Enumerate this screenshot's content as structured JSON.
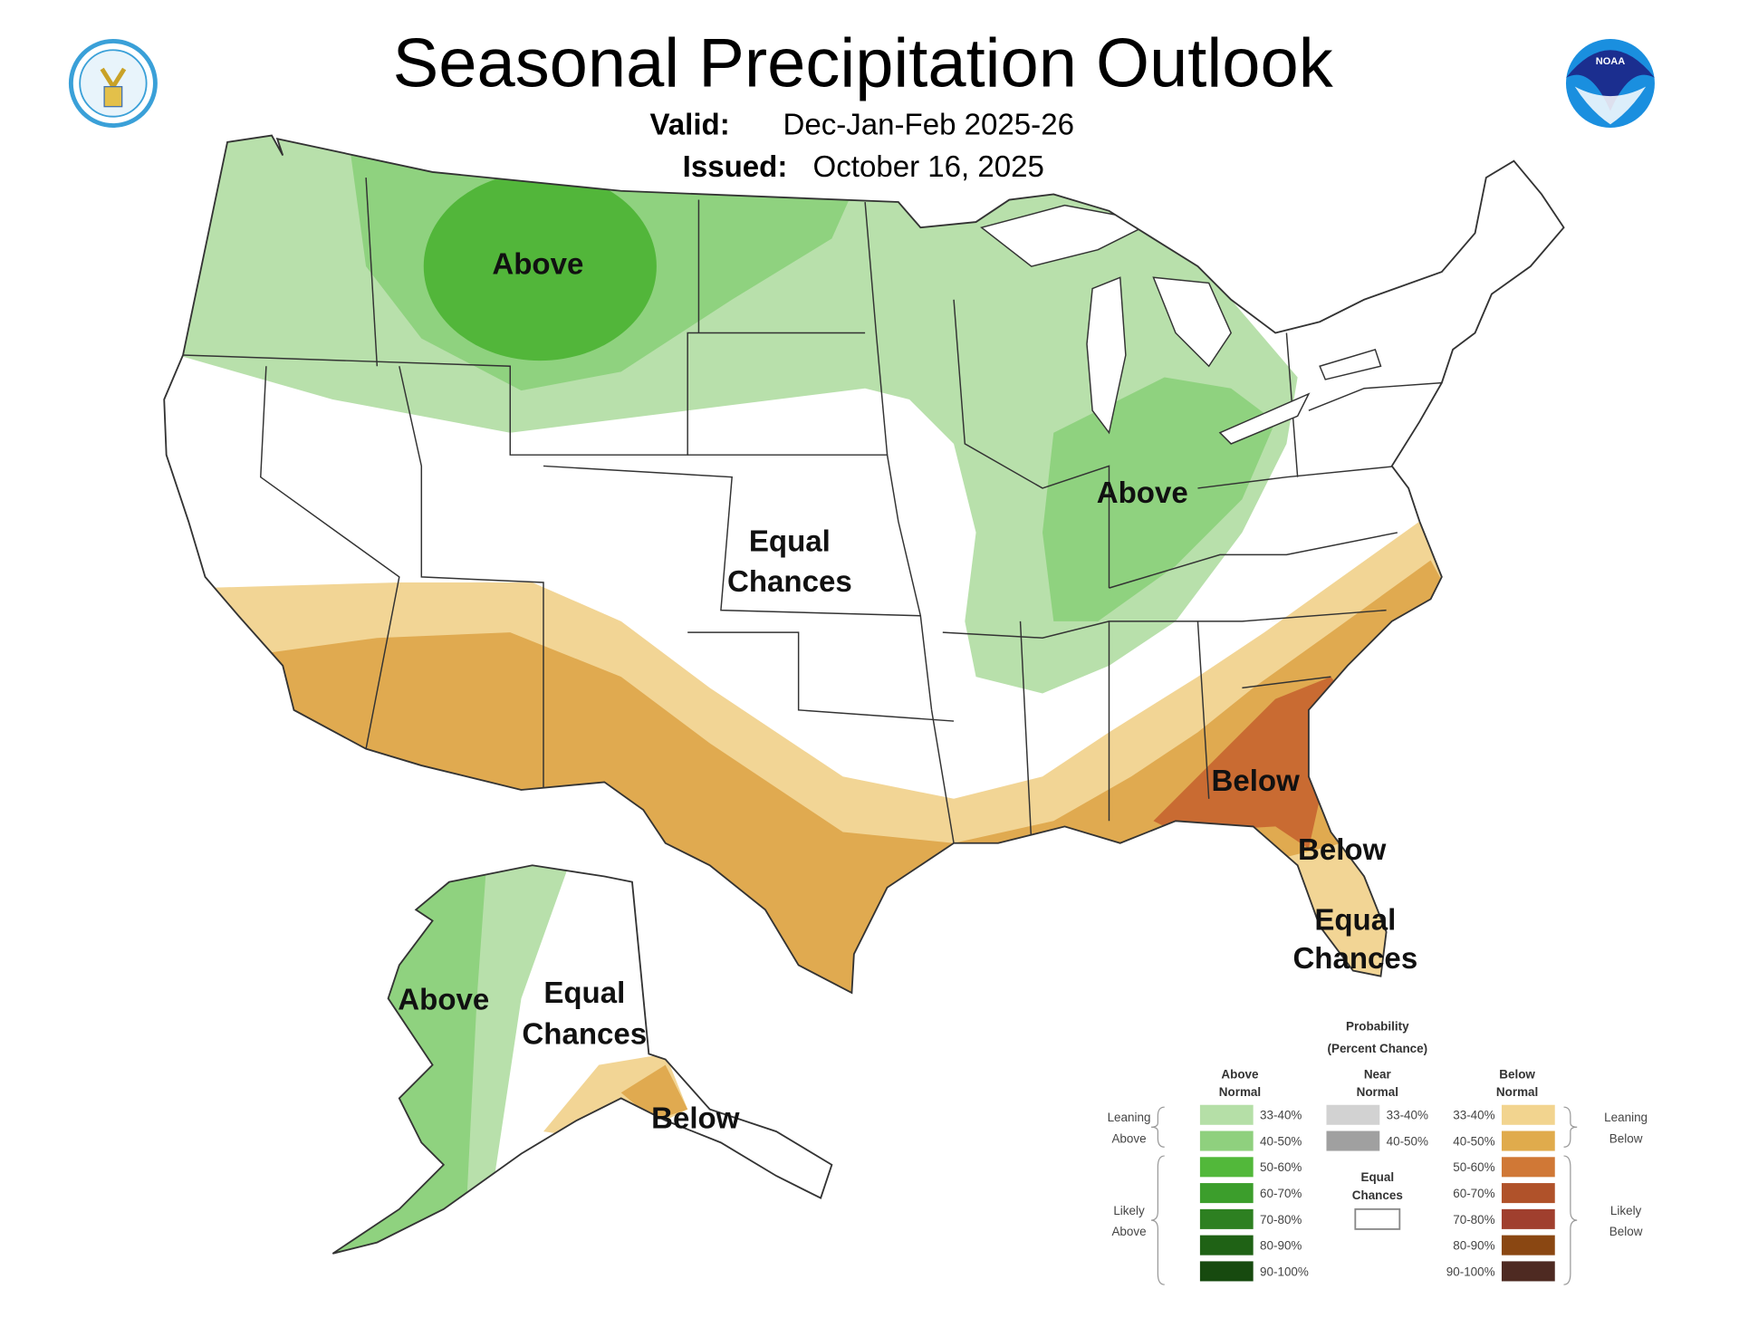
{
  "header": {
    "title": "Seasonal Precipitation Outlook",
    "valid_label": "Valid:",
    "valid_value": "Dec-Jan-Feb 2025-26",
    "issued_label": "Issued:",
    "issued_value": "October 16, 2025",
    "logo_left": "Department of Commerce seal",
    "logo_right": "NOAA"
  },
  "map_labels": {
    "north_above": "Above",
    "midwest_above": "Above",
    "central_equal_1": "Equal",
    "central_equal_2": "Chances",
    "southeast_below_1": "Below",
    "southeast_below_2": "Below",
    "florida_equal_1": "Equal",
    "florida_equal_2": "Chances",
    "alaska_above": "Above",
    "alaska_equal_1": "Equal",
    "alaska_equal_2": "Chances",
    "alaska_below": "Below"
  },
  "colors": {
    "light_green": "#b8e0ab",
    "medium_green": "#8fd27f",
    "dark_green": "#52b63a",
    "tan": "#f2d595",
    "orange": "#e0aa50",
    "brown": "#c96b32"
  },
  "legend": {
    "title_1": "Probability",
    "title_2": "(Percent Chance)",
    "above_header_1": "Above",
    "above_header_2": "Normal",
    "near_header_1": "Near",
    "near_header_2": "Normal",
    "below_header_1": "Below",
    "below_header_2": "Normal",
    "leaning_above_1": "Leaning",
    "leaning_above_2": "Above",
    "likely_above_1": "Likely",
    "likely_above_2": "Above",
    "leaning_below_1": "Leaning",
    "leaning_below_2": "Below",
    "likely_below_1": "Likely",
    "likely_below_2": "Below",
    "equal_1": "Equal",
    "equal_2": "Chances",
    "above": [
      {
        "range": "33-40%",
        "color": "#b5dfa7"
      },
      {
        "range": "40-50%",
        "color": "#8fd07e"
      },
      {
        "range": "50-60%",
        "color": "#52b83a"
      },
      {
        "range": "60-70%",
        "color": "#3c9e2c"
      },
      {
        "range": "70-80%",
        "color": "#2d8021"
      },
      {
        "range": "80-90%",
        "color": "#1f6215"
      },
      {
        "range": "90-100%",
        "color": "#174a0f"
      }
    ],
    "near": [
      {
        "range": "33-40%",
        "color": "#d2d2d2"
      },
      {
        "range": "40-50%",
        "color": "#a0a0a0"
      }
    ],
    "below": [
      {
        "range": "33-40%",
        "color": "#f2d48f"
      },
      {
        "range": "40-50%",
        "color": "#e0ab4c"
      },
      {
        "range": "50-60%",
        "color": "#d07836"
      },
      {
        "range": "60-70%",
        "color": "#b0522a"
      },
      {
        "range": "70-80%",
        "color": "#a03f2e"
      },
      {
        "range": "80-90%",
        "color": "#8a4712"
      },
      {
        "range": "90-100%",
        "color": "#4e2a22"
      }
    ]
  }
}
